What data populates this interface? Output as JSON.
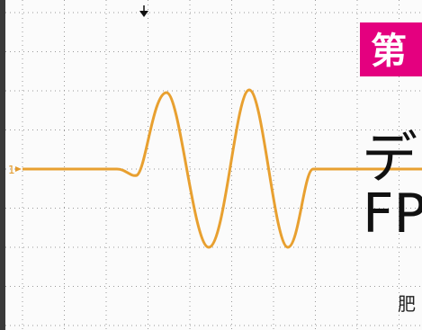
{
  "badge": "第",
  "headline": {
    "line1": "デ",
    "line2": "FP"
  },
  "byline": "肥",
  "channel_marker": "1"
}
